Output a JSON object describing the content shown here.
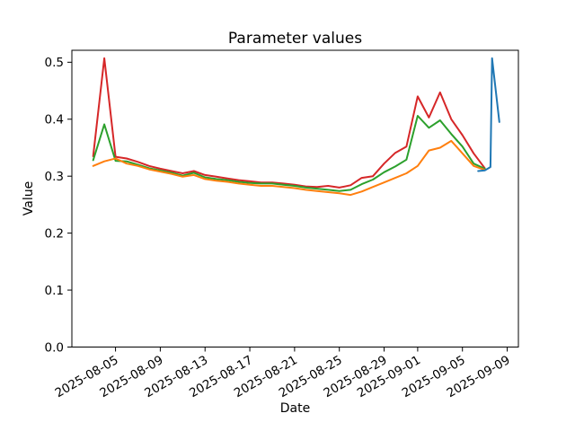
{
  "figure": {
    "background": "#ffffff",
    "title": "Parameter values"
  },
  "chart_data": {
    "type": "line",
    "title": "Parameter values",
    "xlabel": "Date",
    "ylabel": "Value",
    "grid": false,
    "legend": "none",
    "x_start_date": "2025-08-03",
    "xlim_offsets": [
      -1.9,
      38.0
    ],
    "ylim": [
      0,
      0.521
    ],
    "y_ticks": [
      0.0,
      0.1,
      0.2,
      0.3,
      0.4,
      0.5
    ],
    "x_ticks": [
      {
        "label": "2025-08-05",
        "offset": 2
      },
      {
        "label": "2025-08-09",
        "offset": 6
      },
      {
        "label": "2025-08-13",
        "offset": 10
      },
      {
        "label": "2025-08-17",
        "offset": 14
      },
      {
        "label": "2025-08-21",
        "offset": 18
      },
      {
        "label": "2025-08-25",
        "offset": 22
      },
      {
        "label": "2025-08-29",
        "offset": 26
      },
      {
        "label": "2025-09-01",
        "offset": 29
      },
      {
        "label": "2025-09-05",
        "offset": 33
      },
      {
        "label": "2025-09-09",
        "offset": 37
      }
    ],
    "dates": [
      "2025-08-03",
      "2025-08-04",
      "2025-08-05",
      "2025-08-06",
      "2025-08-07",
      "2025-08-08",
      "2025-08-09",
      "2025-08-10",
      "2025-08-11",
      "2025-08-12",
      "2025-08-13",
      "2025-08-14",
      "2025-08-15",
      "2025-08-16",
      "2025-08-17",
      "2025-08-18",
      "2025-08-19",
      "2025-08-20",
      "2025-08-21",
      "2025-08-22",
      "2025-08-23",
      "2025-08-24",
      "2025-08-25",
      "2025-08-26",
      "2025-08-27",
      "2025-08-28",
      "2025-08-29",
      "2025-08-30",
      "2025-08-31",
      "2025-09-01",
      "2025-09-02",
      "2025-09-03",
      "2025-09-04",
      "2025-09-05",
      "2025-09-06",
      "2025-09-07"
    ],
    "series": [
      {
        "name": "red",
        "color": "#d62728",
        "values": [
          0.335,
          0.507,
          0.334,
          0.331,
          0.325,
          0.318,
          0.313,
          0.309,
          0.305,
          0.309,
          0.302,
          0.299,
          0.296,
          0.293,
          0.291,
          0.289,
          0.289,
          0.287,
          0.285,
          0.282,
          0.281,
          0.283,
          0.28,
          0.284,
          0.297,
          0.3,
          0.322,
          0.341,
          0.352,
          0.44,
          0.403,
          0.447,
          0.4,
          0.372,
          0.34,
          0.314
        ]
      },
      {
        "name": "green",
        "color": "#2ca02c",
        "values": [
          0.328,
          0.391,
          0.327,
          0.326,
          0.32,
          0.314,
          0.31,
          0.306,
          0.301,
          0.306,
          0.298,
          0.295,
          0.293,
          0.29,
          0.288,
          0.287,
          0.287,
          0.285,
          0.283,
          0.28,
          0.278,
          0.276,
          0.274,
          0.276,
          0.286,
          0.294,
          0.307,
          0.317,
          0.329,
          0.406,
          0.385,
          0.398,
          0.374,
          0.352,
          0.322,
          0.313
        ]
      },
      {
        "name": "orange",
        "color": "#ff7f0e",
        "values": [
          0.318,
          0.326,
          0.331,
          0.322,
          0.318,
          0.312,
          0.308,
          0.304,
          0.299,
          0.302,
          0.295,
          0.292,
          0.29,
          0.287,
          0.285,
          0.283,
          0.283,
          0.281,
          0.279,
          0.276,
          0.274,
          0.272,
          0.27,
          0.267,
          0.273,
          0.281,
          0.289,
          0.297,
          0.305,
          0.318,
          0.345,
          0.35,
          0.362,
          0.34,
          0.318,
          0.311
        ]
      },
      {
        "name": "blue",
        "color": "#1f77b4",
        "points": [
          [
            34.4,
            0.309
          ],
          [
            35.0,
            0.31
          ],
          [
            35.5,
            0.316
          ],
          [
            35.65,
            0.507
          ],
          [
            36.3,
            0.395
          ]
        ]
      }
    ]
  }
}
